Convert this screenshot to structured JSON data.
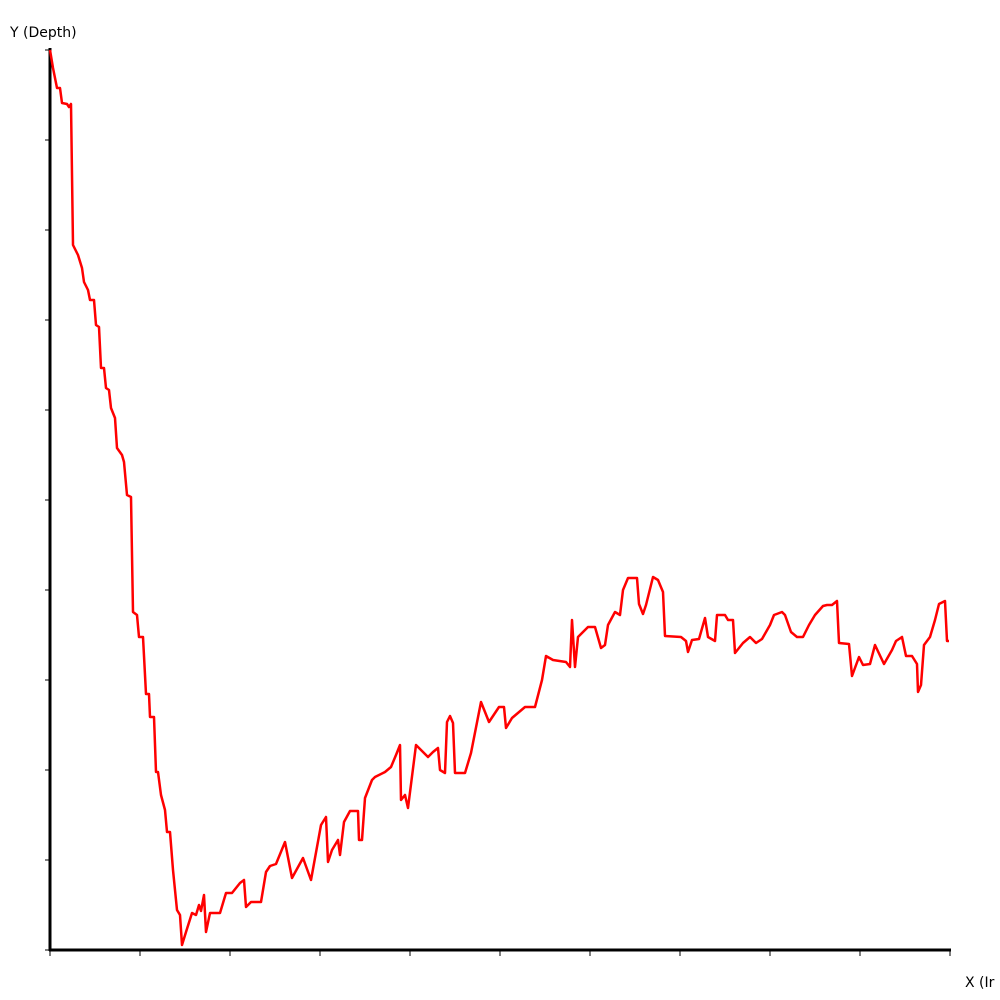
{
  "chart_data": {
    "type": "line",
    "y_label": "Y (Depth)",
    "x_label": "X (Ir",
    "xlim": [
      0,
      900
    ],
    "ylim": [
      0,
      900
    ],
    "xticks": [
      0,
      90,
      180,
      270,
      360,
      450,
      540,
      630,
      720,
      810,
      900
    ],
    "yticks": [
      0,
      90,
      180,
      270,
      360,
      450,
      540,
      630,
      720,
      810,
      900
    ],
    "color": "#ff0000",
    "x": [
      0,
      3,
      7,
      10,
      12,
      17,
      19,
      21,
      23,
      28,
      32,
      34,
      38,
      40,
      44,
      46,
      49,
      51,
      54,
      56,
      59,
      61,
      65,
      67,
      72,
      74,
      77,
      81,
      83,
      87,
      89,
      93,
      96,
      99,
      100,
      104,
      106,
      108,
      111,
      115,
      117,
      120,
      123,
      127,
      130,
      132,
      136,
      142,
      146,
      149,
      151,
      154,
      156,
      160,
      170,
      176,
      182,
      190,
      194,
      196,
      201,
      211,
      216,
      220,
      226,
      235,
      242,
      253,
      261,
      271,
      276,
      278,
      282,
      288,
      290,
      294,
      300,
      308,
      309,
      312,
      315,
      322,
      325,
      335,
      341,
      346,
      350,
      351,
      355,
      358,
      366,
      378,
      383,
      388,
      390,
      395,
      397,
      400,
      403,
      405,
      415,
      421,
      431,
      439,
      449,
      454,
      456,
      462,
      475,
      485,
      492,
      496,
      503,
      516,
      520,
      522,
      525,
      528,
      538,
      545,
      551,
      555,
      558,
      565,
      570,
      573,
      578,
      587,
      589,
      593,
      596,
      603,
      608,
      613,
      615,
      631,
      636,
      638,
      642,
      649,
      655,
      658,
      665,
      667,
      675,
      678,
      683,
      685,
      693,
      700,
      706,
      712,
      720,
      724,
      732,
      735,
      741,
      747,
      753,
      759,
      765,
      773,
      777,
      782,
      787,
      789,
      799,
      802,
      809,
      813,
      820,
      825,
      834,
      842,
      846,
      852,
      856,
      862,
      867,
      868,
      871,
      874,
      880,
      885,
      889,
      895,
      897,
      899
    ],
    "values": [
      900,
      882,
      862,
      862,
      847,
      846,
      843,
      846,
      705,
      695,
      682,
      668,
      660,
      650,
      650,
      625,
      623,
      582,
      582,
      562,
      560,
      542,
      532,
      502,
      495,
      488,
      455,
      453,
      338,
      335,
      313,
      313,
      256,
      256,
      233,
      233,
      178,
      178,
      155,
      140,
      118,
      118,
      80,
      40,
      35,
      5,
      18,
      37,
      35,
      45,
      39,
      55,
      18,
      37,
      37,
      57,
      57,
      67,
      70,
      43,
      48,
      48,
      78,
      84,
      86,
      108,
      72,
      92,
      70,
      125,
      133,
      88,
      100,
      110,
      95,
      128,
      139,
      139,
      110,
      110,
      152,
      170,
      173,
      178,
      183,
      195,
      205,
      150,
      155,
      142,
      205,
      193,
      198,
      202,
      180,
      177,
      228,
      234,
      227,
      177,
      177,
      197,
      248,
      228,
      243,
      243,
      222,
      232,
      243,
      243,
      270,
      294,
      290,
      288,
      283,
      330,
      283,
      313,
      323,
      323,
      302,
      305,
      325,
      338,
      335,
      360,
      372,
      372,
      346,
      336,
      345,
      373,
      370,
      358,
      314,
      313,
      309,
      298,
      310,
      311,
      332,
      313,
      309,
      335,
      335,
      330,
      330,
      297,
      307,
      313,
      307,
      311,
      325,
      335,
      338,
      335,
      318,
      313,
      313,
      325,
      335,
      344,
      345,
      345,
      349,
      307,
      306,
      274,
      293,
      285,
      286,
      305,
      286,
      300,
      309,
      313,
      294,
      294,
      286,
      258,
      265,
      305,
      313,
      330,
      346,
      349,
      309,
      309
    ]
  }
}
